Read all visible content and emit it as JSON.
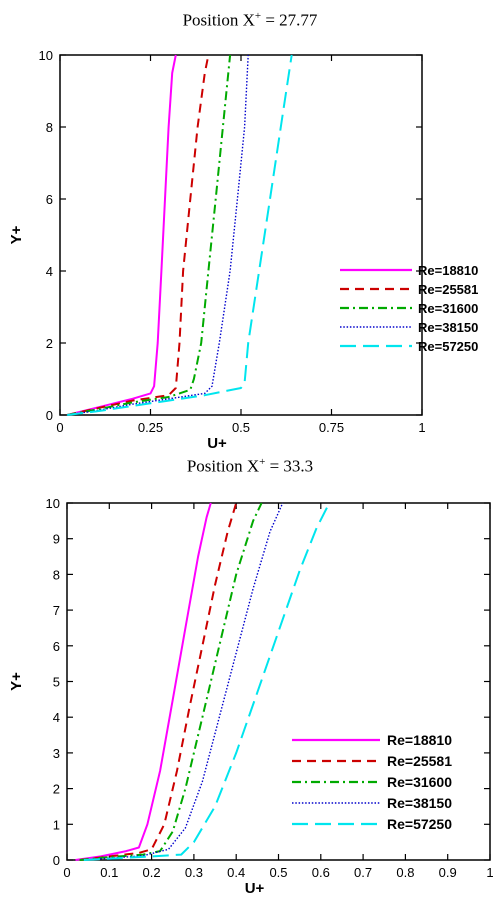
{
  "chart_data": [
    {
      "type": "line",
      "title_prefix": "Position X",
      "title_sup": "+",
      "title_suffix": " = 27.77",
      "xlabel": "U+",
      "ylabel": "Y+",
      "xlim": [
        0,
        1
      ],
      "ylim": [
        0,
        10
      ],
      "xticks": [
        "0",
        "0.25",
        "0.5",
        "0.75",
        "1"
      ],
      "yticks": [
        "0",
        "2",
        "4",
        "6",
        "8",
        "10"
      ],
      "grid": false,
      "legend_position": "right",
      "series": [
        {
          "name": "Re=18810",
          "color": "#ff00ff",
          "dash": "solid",
          "x": [
            0.02,
            0.1,
            0.2,
            0.25,
            0.26,
            0.27,
            0.28,
            0.29,
            0.3,
            0.31,
            0.32
          ],
          "y": [
            0,
            0.2,
            0.45,
            0.6,
            0.8,
            2,
            4,
            6,
            8,
            9.5,
            10
          ]
        },
        {
          "name": "Re=25581",
          "color": "#cc0000",
          "dash": "dashed",
          "x": [
            0.02,
            0.1,
            0.2,
            0.3,
            0.32,
            0.33,
            0.34,
            0.36,
            0.38,
            0.4,
            0.41
          ],
          "y": [
            0,
            0.18,
            0.4,
            0.55,
            0.75,
            2,
            4,
            6,
            8,
            9.5,
            10
          ]
        },
        {
          "name": "Re=31600",
          "color": "#00aa00",
          "dash": "dashdot",
          "x": [
            0.02,
            0.1,
            0.2,
            0.3,
            0.36,
            0.37,
            0.39,
            0.41,
            0.43,
            0.45,
            0.47
          ],
          "y": [
            0,
            0.15,
            0.35,
            0.5,
            0.7,
            1,
            2,
            4,
            6,
            8,
            10
          ]
        },
        {
          "name": "Re=38150",
          "color": "#0000cc",
          "dash": "dotted",
          "x": [
            0.02,
            0.1,
            0.2,
            0.3,
            0.4,
            0.42,
            0.44,
            0.47,
            0.49,
            0.51,
            0.52
          ],
          "y": [
            0,
            0.12,
            0.3,
            0.45,
            0.6,
            0.8,
            2,
            4,
            6,
            8,
            10
          ]
        },
        {
          "name": "Re=57250",
          "color": "#00e5ee",
          "dash": "longdash",
          "x": [
            0.02,
            0.1,
            0.2,
            0.3,
            0.4,
            0.5,
            0.51,
            0.52,
            0.55,
            0.58,
            0.61,
            0.64
          ],
          "y": [
            0,
            0.1,
            0.25,
            0.4,
            0.55,
            0.75,
            0.9,
            2,
            4,
            6,
            8,
            10
          ]
        }
      ]
    },
    {
      "type": "line",
      "title_prefix": "Position X",
      "title_sup": "+",
      "title_suffix": " = 33.3",
      "xlabel": "U+",
      "ylabel": "Y+",
      "xlim": [
        0,
        1
      ],
      "ylim": [
        0,
        10
      ],
      "xticks": [
        "0",
        "0.1",
        "0.2",
        "0.3",
        "0.4",
        "0.5",
        "0.6",
        "0.7",
        "0.8",
        "0.9",
        "1"
      ],
      "yticks": [
        "0",
        "1",
        "2",
        "3",
        "4",
        "5",
        "6",
        "7",
        "8",
        "9",
        "10"
      ],
      "grid": false,
      "legend_position": "right",
      "series": [
        {
          "name": "Re=18810",
          "color": "#ff00ff",
          "dash": "solid",
          "x": [
            0.02,
            0.08,
            0.14,
            0.17,
            0.19,
            0.22,
            0.25,
            0.28,
            0.31,
            0.33,
            0.34
          ],
          "y": [
            0,
            0.1,
            0.25,
            0.35,
            1,
            2.5,
            4.5,
            6.5,
            8.5,
            9.6,
            10
          ]
        },
        {
          "name": "Re=25581",
          "color": "#cc0000",
          "dash": "dashed",
          "x": [
            0.03,
            0.1,
            0.17,
            0.2,
            0.23,
            0.26,
            0.29,
            0.32,
            0.35,
            0.38,
            0.4
          ],
          "y": [
            0,
            0.1,
            0.2,
            0.3,
            1,
            2.5,
            4.3,
            6,
            7.7,
            9.2,
            10
          ]
        },
        {
          "name": "Re=31600",
          "color": "#00aa00",
          "dash": "dashdot",
          "x": [
            0.03,
            0.1,
            0.18,
            0.22,
            0.25,
            0.28,
            0.32,
            0.36,
            0.4,
            0.44,
            0.46
          ],
          "y": [
            0,
            0.08,
            0.15,
            0.25,
            0.8,
            2,
            4,
            6,
            8,
            9.5,
            10
          ]
        },
        {
          "name": "Re=38150",
          "color": "#0000cc",
          "dash": "dotted",
          "x": [
            0.04,
            0.1,
            0.18,
            0.24,
            0.28,
            0.32,
            0.36,
            0.4,
            0.44,
            0.48,
            0.51
          ],
          "y": [
            0,
            0.05,
            0.12,
            0.3,
            0.9,
            2.2,
            4,
            5.8,
            7.6,
            9.2,
            10
          ]
        },
        {
          "name": "Re=57250",
          "color": "#00e5ee",
          "dash": "longdash",
          "x": [
            0.04,
            0.12,
            0.2,
            0.27,
            0.3,
            0.35,
            0.4,
            0.45,
            0.5,
            0.55,
            0.59,
            0.62
          ],
          "y": [
            0,
            0.05,
            0.1,
            0.15,
            0.5,
            1.5,
            3,
            4.7,
            6.4,
            8.1,
            9.3,
            10
          ]
        }
      ]
    }
  ]
}
